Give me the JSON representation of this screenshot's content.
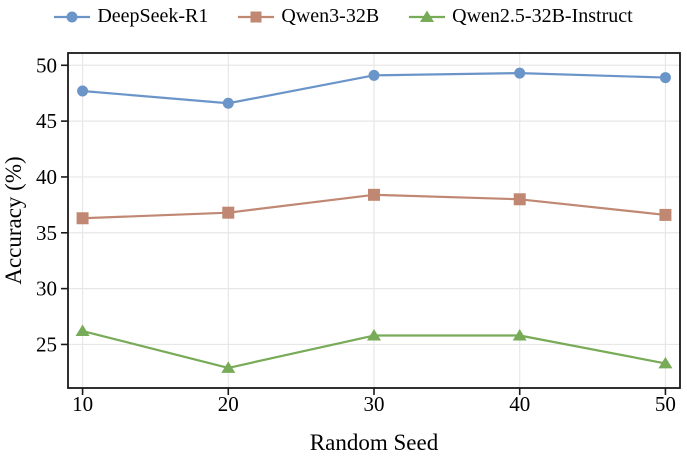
{
  "figure": {
    "background": "#ffffff",
    "axis_color": "#1a1a1a",
    "grid_color": "#e7e7e7"
  },
  "chart_data": {
    "type": "line",
    "title": "",
    "xlabel": "Random Seed",
    "ylabel": "Accuracy (%)",
    "x": [
      10,
      20,
      30,
      40,
      50
    ],
    "xticks": [
      10,
      20,
      30,
      40,
      50
    ],
    "yticks": [
      25,
      30,
      35,
      40,
      45,
      50
    ],
    "xlim": [
      9,
      51
    ],
    "ylim": [
      21.1,
      51.1
    ],
    "grid": true,
    "legend_position": "top",
    "series": [
      {
        "name": "DeepSeek-R1",
        "marker": "circle",
        "color": "#6b95c9",
        "values": [
          47.7,
          46.6,
          49.1,
          49.3,
          48.9
        ]
      },
      {
        "name": "Qwen3-32B",
        "marker": "square",
        "color": "#c08873",
        "values": [
          36.3,
          36.8,
          38.4,
          38.0,
          36.6
        ]
      },
      {
        "name": "Qwen2.5-32B-Instruct",
        "marker": "triangle",
        "color": "#77ab57",
        "values": [
          26.2,
          22.9,
          25.8,
          25.8,
          23.3
        ]
      }
    ]
  }
}
